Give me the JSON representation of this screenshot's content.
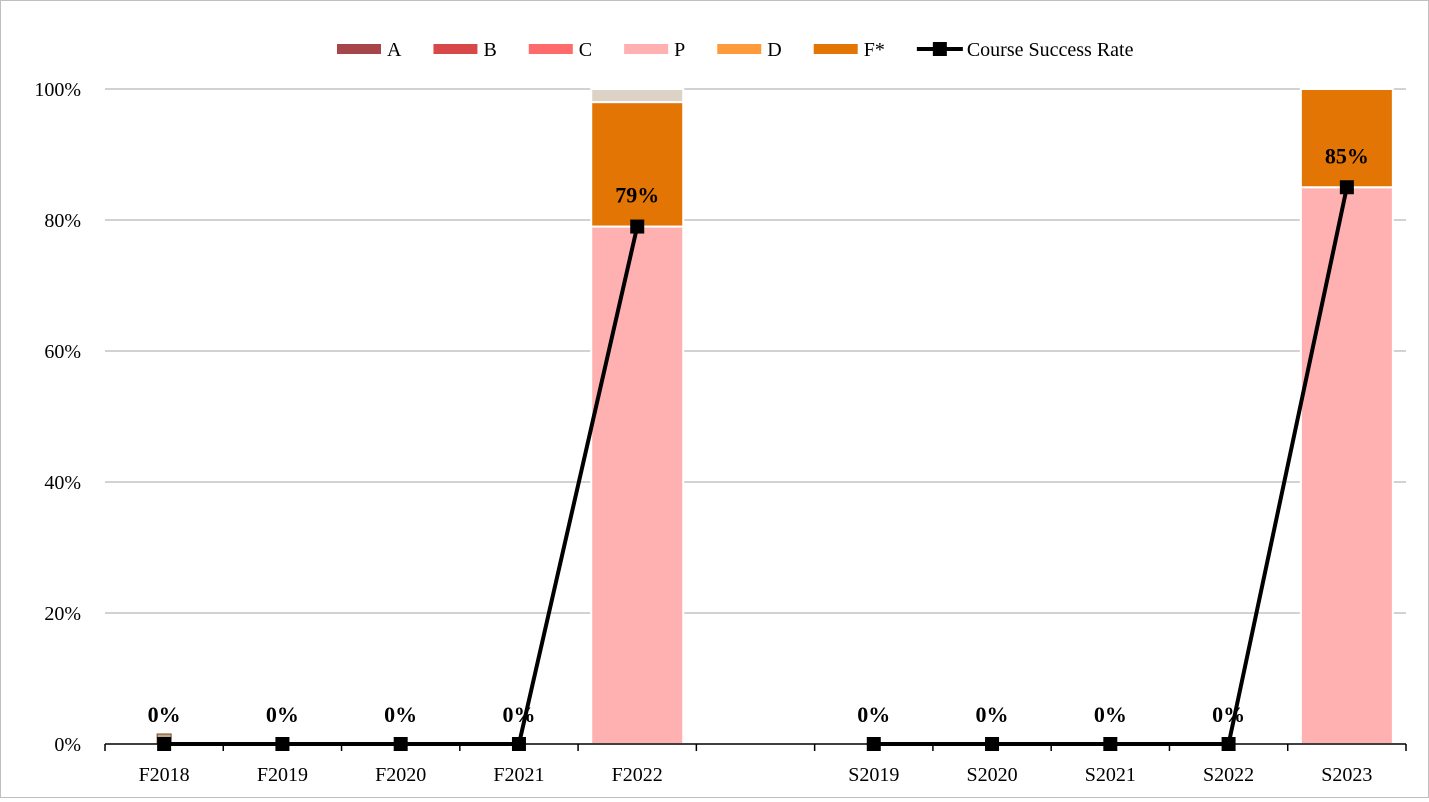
{
  "chart_data": {
    "type": "bar",
    "stacked": true,
    "categories": [
      "F2018",
      "F2019",
      "F2020",
      "F2021",
      "F2022",
      "",
      "S2019",
      "S2020",
      "S2021",
      "S2022",
      "S2023"
    ],
    "series": [
      {
        "name": "A",
        "color": "#a6464a",
        "values": [
          0,
          0,
          0,
          0,
          0,
          null,
          0,
          0,
          0,
          0,
          0
        ]
      },
      {
        "name": "B",
        "color": "#d94848",
        "values": [
          0,
          0,
          0,
          0,
          0,
          null,
          0,
          0,
          0,
          0,
          0
        ]
      },
      {
        "name": "C",
        "color": "#ff6a6a",
        "values": [
          0,
          0,
          0,
          0,
          0,
          null,
          0,
          0,
          0,
          0,
          0
        ]
      },
      {
        "name": "P",
        "color": "#ffb0b0",
        "values": [
          0,
          0,
          0,
          0,
          79,
          null,
          0,
          0,
          0,
          0,
          85
        ]
      },
      {
        "name": "D",
        "color": "#ff9a3c",
        "values": [
          0,
          0,
          0,
          0,
          0,
          null,
          0,
          0,
          0,
          0,
          0
        ]
      },
      {
        "name": "F*",
        "color": "#e37505",
        "values": [
          0,
          0,
          0,
          0,
          19,
          null,
          0,
          0,
          0,
          0,
          15
        ]
      },
      {
        "name": "",
        "color": "#dcd2c6",
        "values": [
          0,
          0,
          0,
          0,
          2,
          null,
          0,
          0,
          0,
          0,
          0
        ]
      }
    ],
    "line": {
      "name": "Course Success Rate",
      "color": "#000000",
      "values": [
        0,
        0,
        0,
        0,
        79,
        null,
        0,
        0,
        0,
        0,
        85
      ],
      "labels": [
        "0%",
        "0%",
        "0%",
        "0%",
        "79%",
        "",
        "0%",
        "0%",
        "0%",
        "0%",
        "85%"
      ]
    },
    "yticks": [
      "0%",
      "20%",
      "40%",
      "60%",
      "80%",
      "100%"
    ],
    "ylim": [
      0,
      100
    ],
    "grid": true,
    "legend": "top"
  }
}
